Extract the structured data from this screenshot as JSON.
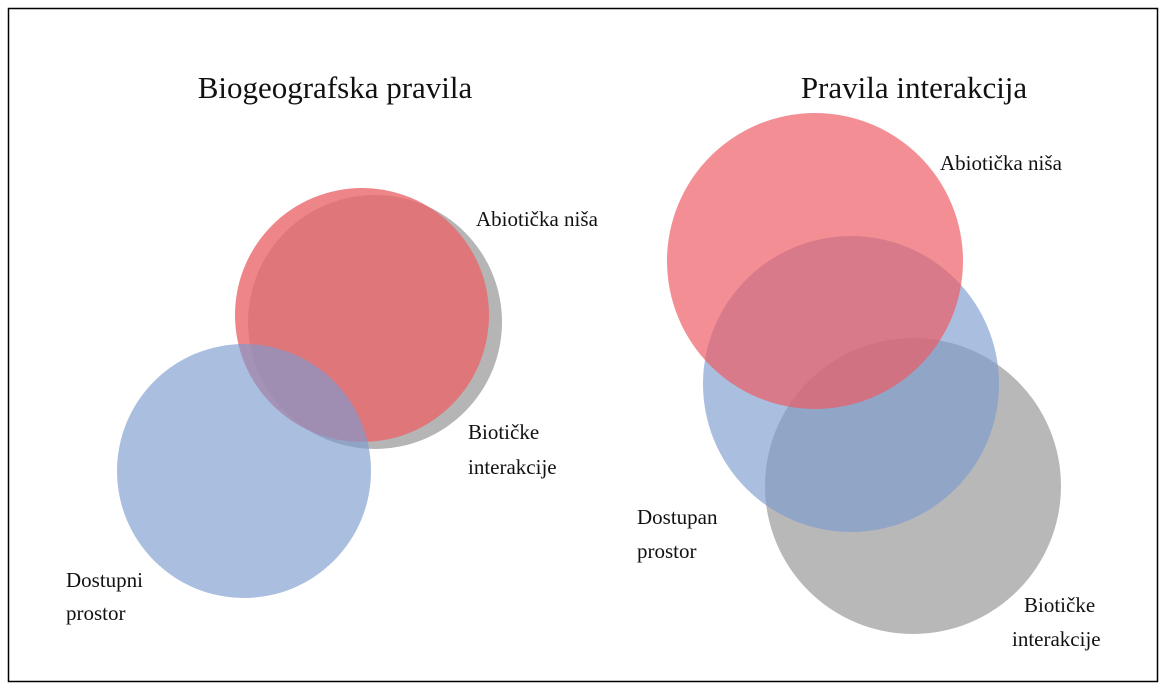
{
  "panels": [
    {
      "title": "Biogeografska pravila",
      "labels": [
        {
          "lines": [
            "Abiotička niša"
          ]
        },
        {
          "lines": [
            "Biotičke",
            "interakcije"
          ]
        },
        {
          "lines": [
            "Dostupni",
            "prostor"
          ]
        }
      ]
    },
    {
      "title": "Pravila interakcija",
      "labels": [
        {
          "lines": [
            "Abiotička niša"
          ]
        },
        {
          "lines": [
            "Dostupan",
            "prostor"
          ]
        },
        {
          "lines": [
            "Biotičke",
            "interakcije"
          ]
        }
      ]
    }
  ]
}
